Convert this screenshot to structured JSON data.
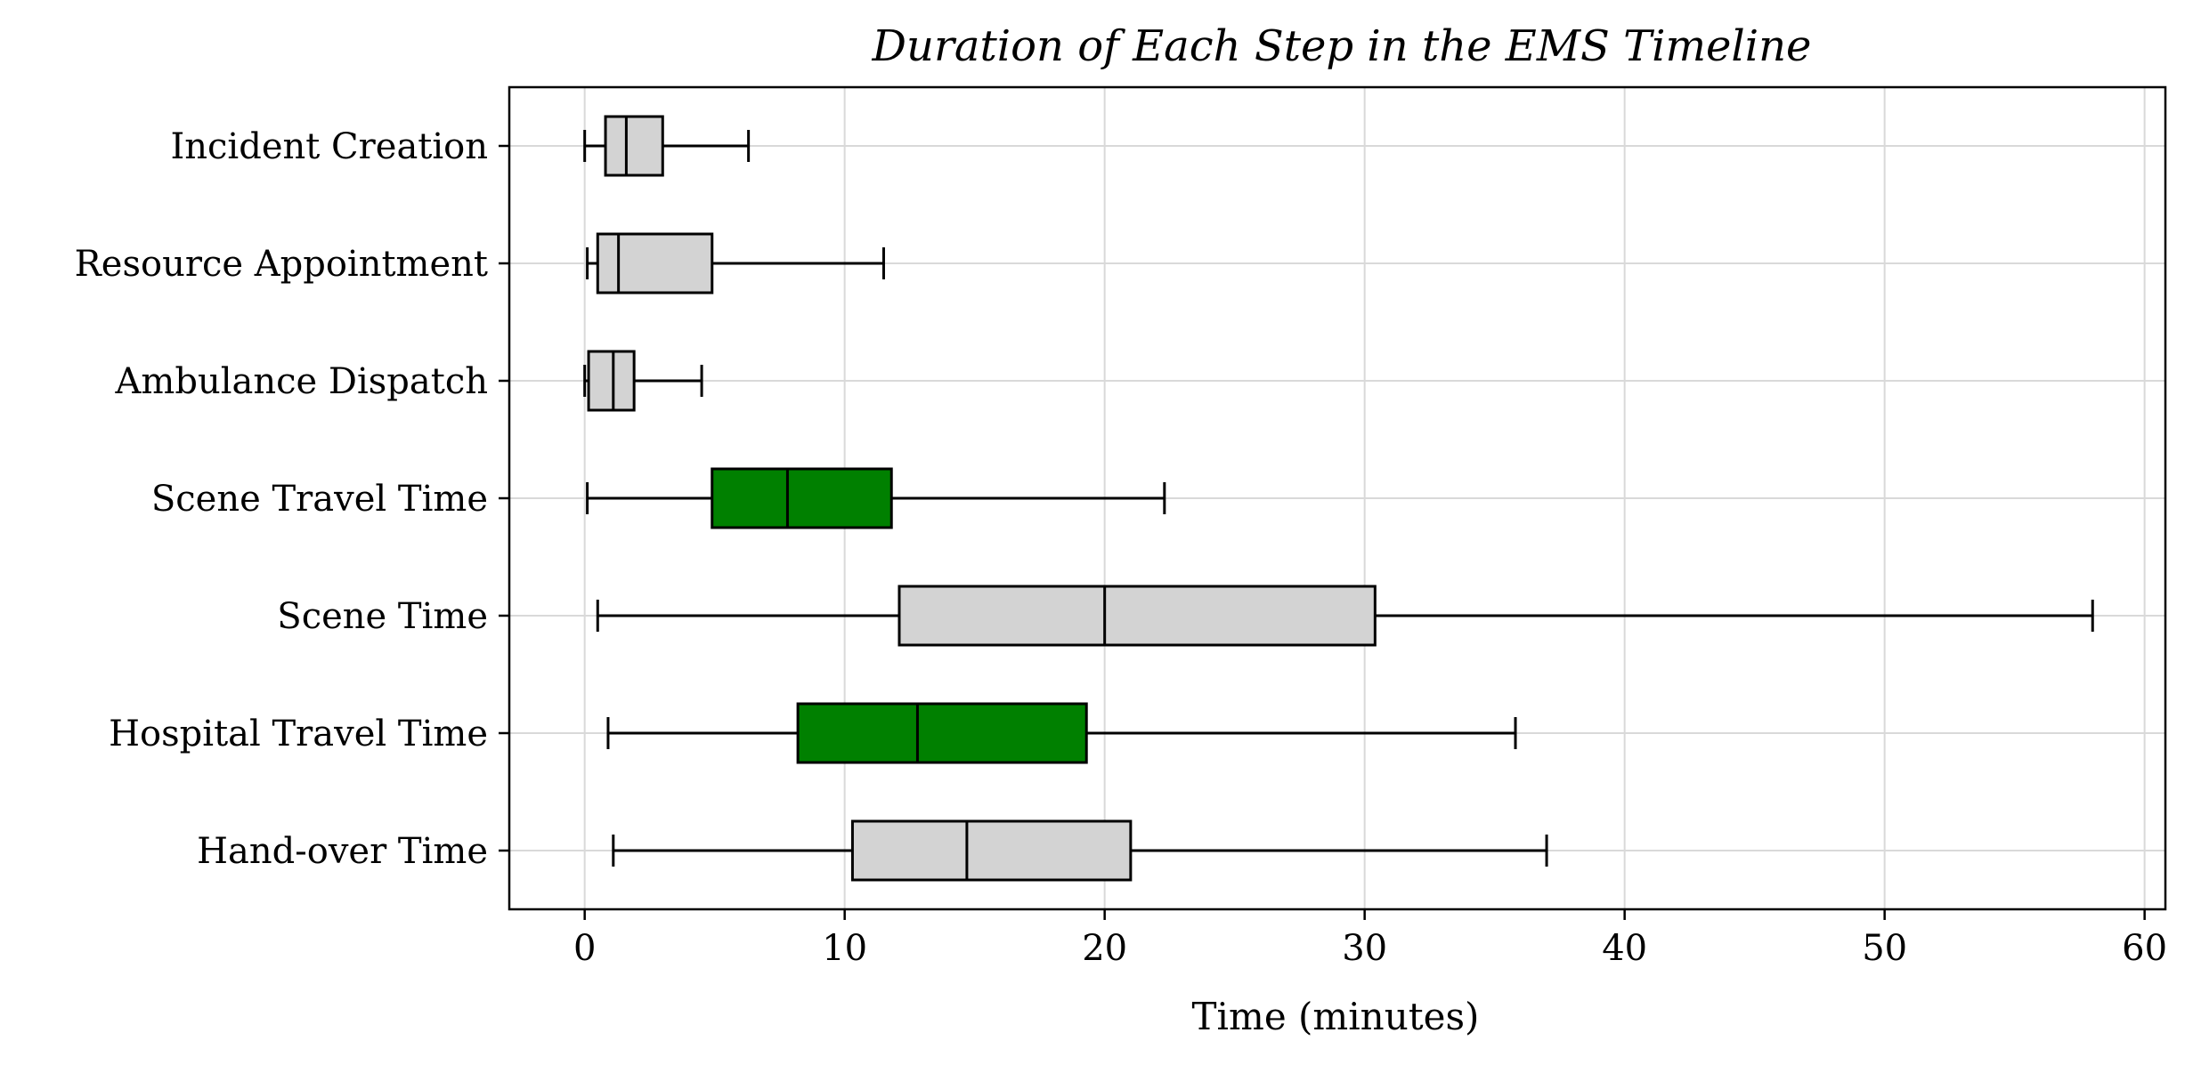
{
  "chart_data": {
    "type": "boxplot",
    "orientation": "horizontal",
    "title": "Duration of Each Step in the EMS Timeline",
    "xlabel": "Time (minutes)",
    "ylabel": "",
    "xlim": [
      -2.9,
      60.8
    ],
    "xticks": [
      0,
      10,
      20,
      30,
      40,
      50,
      60
    ],
    "grid": true,
    "colors": {
      "default": "#d3d3d3",
      "highlight": "#008000",
      "line": "#000000",
      "grid": "#d9d9d9"
    },
    "categories": [
      "Incident Creation",
      "Resource Appointment",
      "Ambulance Dispatch",
      "Scene Travel Time",
      "Scene Time",
      "Hospital Travel Time",
      "Hand-over Time"
    ],
    "boxes": [
      {
        "label": "Incident Creation",
        "whisker_low": 0.0,
        "q1": 0.8,
        "median": 1.6,
        "q3": 3.0,
        "whisker_high": 6.3,
        "highlight": false
      },
      {
        "label": "Resource Appointment",
        "whisker_low": 0.1,
        "q1": 0.5,
        "median": 1.3,
        "q3": 4.9,
        "whisker_high": 11.5,
        "highlight": false
      },
      {
        "label": "Ambulance Dispatch",
        "whisker_low": 0.0,
        "q1": 0.15,
        "median": 1.1,
        "q3": 1.9,
        "whisker_high": 4.5,
        "highlight": false
      },
      {
        "label": "Scene Travel Time",
        "whisker_low": 0.1,
        "q1": 4.9,
        "median": 7.8,
        "q3": 11.8,
        "whisker_high": 22.3,
        "highlight": true
      },
      {
        "label": "Scene Time",
        "whisker_low": 0.5,
        "q1": 12.1,
        "median": 20.0,
        "q3": 30.4,
        "whisker_high": 58.0,
        "highlight": false
      },
      {
        "label": "Hospital Travel Time",
        "whisker_low": 0.9,
        "q1": 8.2,
        "median": 12.8,
        "q3": 19.3,
        "whisker_high": 35.8,
        "highlight": true
      },
      {
        "label": "Hand-over Time",
        "whisker_low": 1.1,
        "q1": 10.3,
        "median": 14.7,
        "q3": 21.0,
        "whisker_high": 37.0,
        "highlight": false
      }
    ]
  }
}
